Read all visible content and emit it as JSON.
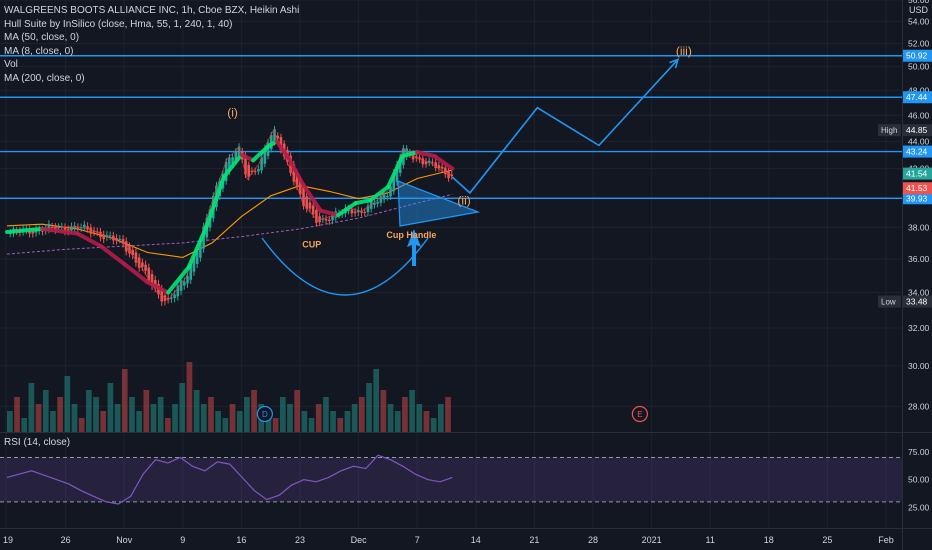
{
  "legend": {
    "title": "WALGREENS BOOTS ALLIANCE INC, 1h, Cboe BZX, Heikin Ashi",
    "lines": [
      "Hull Suite by InSilico (close, Hma, 55, 1, 240, 1, 40)",
      "MA (50, close, 0)",
      "MA (8, close, 0)",
      "Vol",
      "MA (200, close, 0)"
    ]
  },
  "currency": "USD",
  "rsi_label": "RSI (14, close)",
  "colors": {
    "background": "#131722",
    "grid": "#1e222d",
    "hline": "#2196f3",
    "up": "#26a69a",
    "down": "#ef5350",
    "hull_up": "#00e676",
    "hull_down": "#b71c4a",
    "ma50": "#ff9800",
    "ma200": "#9c5cc0",
    "ma8": "#e04040",
    "rsi": "#7e57c2",
    "annotation": "#f5a45b"
  },
  "chart_data": {
    "type": "candlestick",
    "x_ticks": [
      "19",
      "26",
      "Nov",
      "9",
      "16",
      "23",
      "Dec",
      "7",
      "14",
      "21",
      "28",
      "2021",
      "11",
      "18",
      "25",
      "Feb"
    ],
    "y_ticks": [
      28.0,
      30.0,
      32.0,
      34.0,
      36.0,
      38.0,
      40.0,
      42.0,
      44.0,
      46.0,
      48.0,
      50.0,
      52.0,
      54.0,
      56.0
    ],
    "ylim": [
      26.8,
      56.0
    ],
    "scale": "log",
    "price_path": [
      [
        0,
        37.6
      ],
      [
        0.6,
        37.9
      ],
      [
        1.2,
        38.0
      ],
      [
        1.5,
        37.7
      ],
      [
        2.0,
        36.9
      ],
      [
        2.3,
        35.4
      ],
      [
        2.55,
        34.0
      ],
      [
        2.75,
        33.5
      ],
      [
        3.05,
        34.8
      ],
      [
        3.35,
        37.8
      ],
      [
        3.55,
        40.3
      ],
      [
        3.75,
        42.6
      ],
      [
        3.95,
        43.5
      ],
      [
        4.1,
        41.2
      ],
      [
        4.3,
        42.3
      ],
      [
        4.45,
        44.0
      ],
      [
        4.55,
        44.8
      ],
      [
        4.7,
        43.2
      ],
      [
        4.9,
        41.3
      ],
      [
        5.05,
        39.5
      ],
      [
        5.3,
        38.4
      ],
      [
        5.55,
        38.7
      ],
      [
        5.85,
        39.2
      ],
      [
        6.05,
        39.0
      ],
      [
        6.3,
        39.7
      ],
      [
        6.5,
        40.4
      ],
      [
        6.75,
        43.4
      ],
      [
        6.95,
        42.8
      ],
      [
        7.25,
        42.3
      ],
      [
        7.45,
        41.7
      ],
      [
        7.6,
        41.5
      ]
    ],
    "hull_path": [
      [
        0,
        37.7
      ],
      [
        0.6,
        37.9
      ],
      [
        1.2,
        37.6
      ],
      [
        1.6,
        36.8
      ],
      [
        2.0,
        35.7
      ],
      [
        2.4,
        34.6
      ],
      [
        2.75,
        34.0
      ],
      [
        3.1,
        35.5
      ],
      [
        3.4,
        38.0
      ],
      [
        3.7,
        41.4
      ],
      [
        4.0,
        43.0
      ],
      [
        4.2,
        42.6
      ],
      [
        4.45,
        43.6
      ],
      [
        4.6,
        44.0
      ],
      [
        4.8,
        42.8
      ],
      [
        5.05,
        40.9
      ],
      [
        5.35,
        39.1
      ],
      [
        5.65,
        38.8
      ],
      [
        5.95,
        39.6
      ],
      [
        6.2,
        39.8
      ],
      [
        6.5,
        40.7
      ],
      [
        6.75,
        42.9
      ],
      [
        7.0,
        43.2
      ],
      [
        7.3,
        42.9
      ],
      [
        7.6,
        42.0
      ]
    ],
    "ma50_path": [
      [
        0,
        38.1
      ],
      [
        0.6,
        38.2
      ],
      [
        1.2,
        37.9
      ],
      [
        1.8,
        37.3
      ],
      [
        2.4,
        36.4
      ],
      [
        3.0,
        36.1
      ],
      [
        3.5,
        37.0
      ],
      [
        4.0,
        38.7
      ],
      [
        4.5,
        40.1
      ],
      [
        5.0,
        40.8
      ],
      [
        5.5,
        40.4
      ],
      [
        6.0,
        39.9
      ],
      [
        6.5,
        40.3
      ],
      [
        7.0,
        41.3
      ],
      [
        7.6,
        41.9
      ]
    ],
    "ma200_path": [
      [
        0,
        36.3
      ],
      [
        1.0,
        36.6
      ],
      [
        2.0,
        36.8
      ],
      [
        3.0,
        37.0
      ],
      [
        4.0,
        37.4
      ],
      [
        5.0,
        37.9
      ],
      [
        6.0,
        38.6
      ],
      [
        7.0,
        39.6
      ],
      [
        7.6,
        40.2
      ]
    ],
    "volume_bars": [
      0.3,
      0.5,
      0.2,
      0.7,
      0.4,
      0.6,
      0.3,
      0.5,
      0.8,
      0.4,
      0.2,
      0.6,
      0.5,
      0.3,
      0.7,
      0.4,
      0.9,
      0.5,
      0.3,
      0.6,
      0.4,
      0.5,
      0.2,
      0.4,
      0.7,
      1.0,
      0.6,
      0.4,
      0.5,
      0.3,
      0.2,
      0.4,
      0.3,
      0.5,
      0.6,
      0.4,
      0.3,
      0.2,
      0.5,
      0.4,
      0.6,
      0.3,
      0.2,
      0.4,
      0.5,
      0.3,
      0.2,
      0.3,
      0.4,
      0.5,
      0.7,
      0.9,
      0.6,
      0.4,
      0.3,
      0.5,
      0.6,
      0.4,
      0.3,
      0.2,
      0.4,
      0.5
    ],
    "horizontal_levels": [
      {
        "label": "50.92",
        "value": 50.92,
        "style": "blue"
      },
      {
        "label": "47.44",
        "value": 47.44,
        "style": "blue"
      },
      {
        "label": "43.24",
        "value": 43.24,
        "style": "blue"
      },
      {
        "label": "39.93",
        "value": 39.93,
        "style": "blue"
      }
    ],
    "price_labels": [
      {
        "name": "High",
        "label": "44.85",
        "value": 44.85,
        "style": "dark"
      },
      {
        "label": "41.54",
        "value": 41.54,
        "style": "green"
      },
      {
        "label": "41.53",
        "value": 41.53,
        "style": "red"
      },
      {
        "name": "Low",
        "label": "33.48",
        "value": 33.48,
        "style": "dark"
      }
    ],
    "projection": [
      [
        7.6,
        41.4
      ],
      [
        7.9,
        40.3
      ],
      [
        9.05,
        46.6
      ],
      [
        10.1,
        43.7
      ],
      [
        11.45,
        50.6
      ]
    ],
    "annotations": [
      {
        "text": "(i)",
        "x": 3.85,
        "y": 45.9
      },
      {
        "text": "(ii)",
        "x": 7.8,
        "y": 39.5
      },
      {
        "text": "(iii)",
        "x": 11.55,
        "y": 51.0
      },
      {
        "text": "CUP",
        "x": 5.2,
        "y": 36.7
      },
      {
        "text": "Cup Handle",
        "x": 6.9,
        "y": 37.3
      }
    ],
    "event_markers": [
      {
        "text": "D",
        "x": 4.4
      },
      {
        "text": "E",
        "x": 10.8
      }
    ],
    "rsi": {
      "y_ticks": [
        25.0,
        50.0,
        75.0
      ],
      "upper": 70,
      "lower": 30,
      "values": [
        52,
        55,
        58,
        54,
        50,
        46,
        40,
        35,
        30,
        28,
        35,
        55,
        68,
        65,
        70,
        62,
        58,
        66,
        64,
        52,
        40,
        32,
        36,
        45,
        50,
        48,
        52,
        58,
        62,
        60,
        72,
        68,
        62,
        55,
        50,
        48,
        52
      ]
    }
  }
}
